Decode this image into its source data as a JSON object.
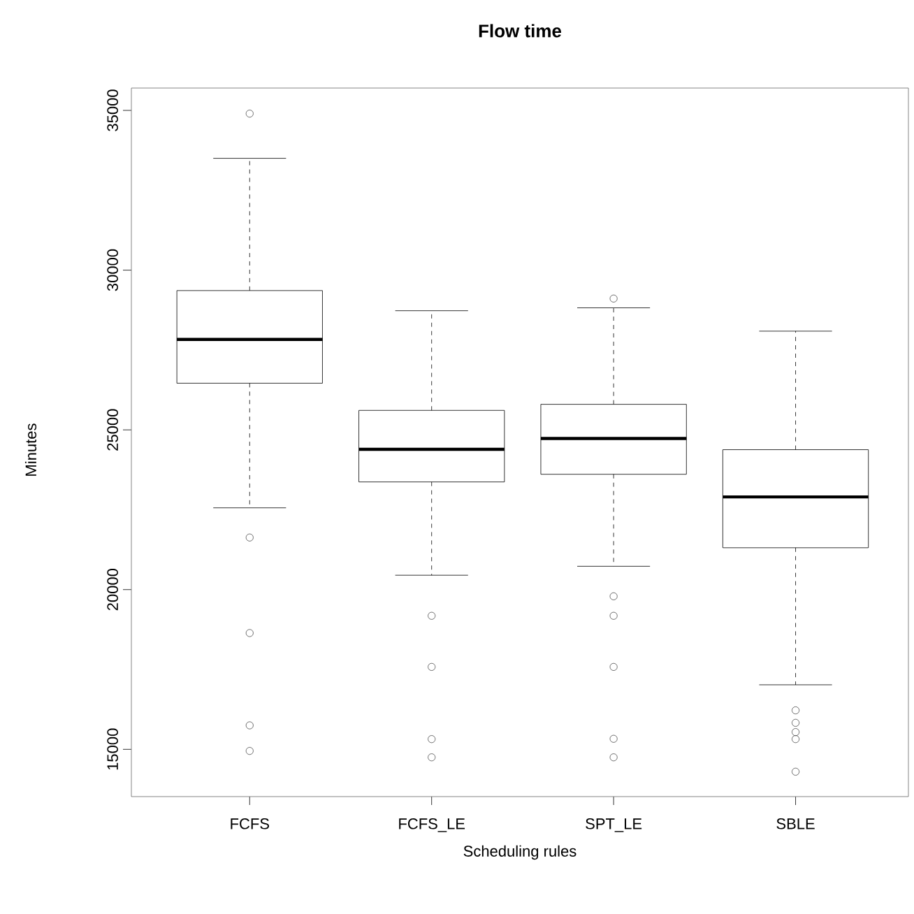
{
  "chart_data": {
    "type": "box",
    "title": "Flow time",
    "xlabel": "Scheduling rules",
    "ylabel": "Minutes",
    "categories": [
      "FCFS",
      "FCFS_LE",
      "SPT_LE",
      "SBLE"
    ],
    "boxes": [
      {
        "low": 22560,
        "q1": 26460,
        "median": 27830,
        "q3": 29360,
        "high": 33500,
        "outliers": [
          34900,
          21630,
          18640,
          15750,
          14950
        ]
      },
      {
        "low": 20450,
        "q1": 23370,
        "median": 24390,
        "q3": 25610,
        "high": 28730,
        "outliers": [
          19180,
          17580,
          15320,
          14750
        ]
      },
      {
        "low": 20730,
        "q1": 23610,
        "median": 24730,
        "q3": 25800,
        "high": 28820,
        "outliers": [
          29110,
          19790,
          19180,
          17580,
          15330,
          14750
        ]
      },
      {
        "low": 17020,
        "q1": 21310,
        "median": 22900,
        "q3": 24380,
        "high": 28090,
        "outliers": [
          16220,
          15830,
          15540,
          15320,
          14300
        ]
      }
    ],
    "ylim": [
      13520,
      35700
    ],
    "yticks": [
      15000,
      20000,
      25000,
      30000,
      35000
    ],
    "marker": "circle"
  }
}
